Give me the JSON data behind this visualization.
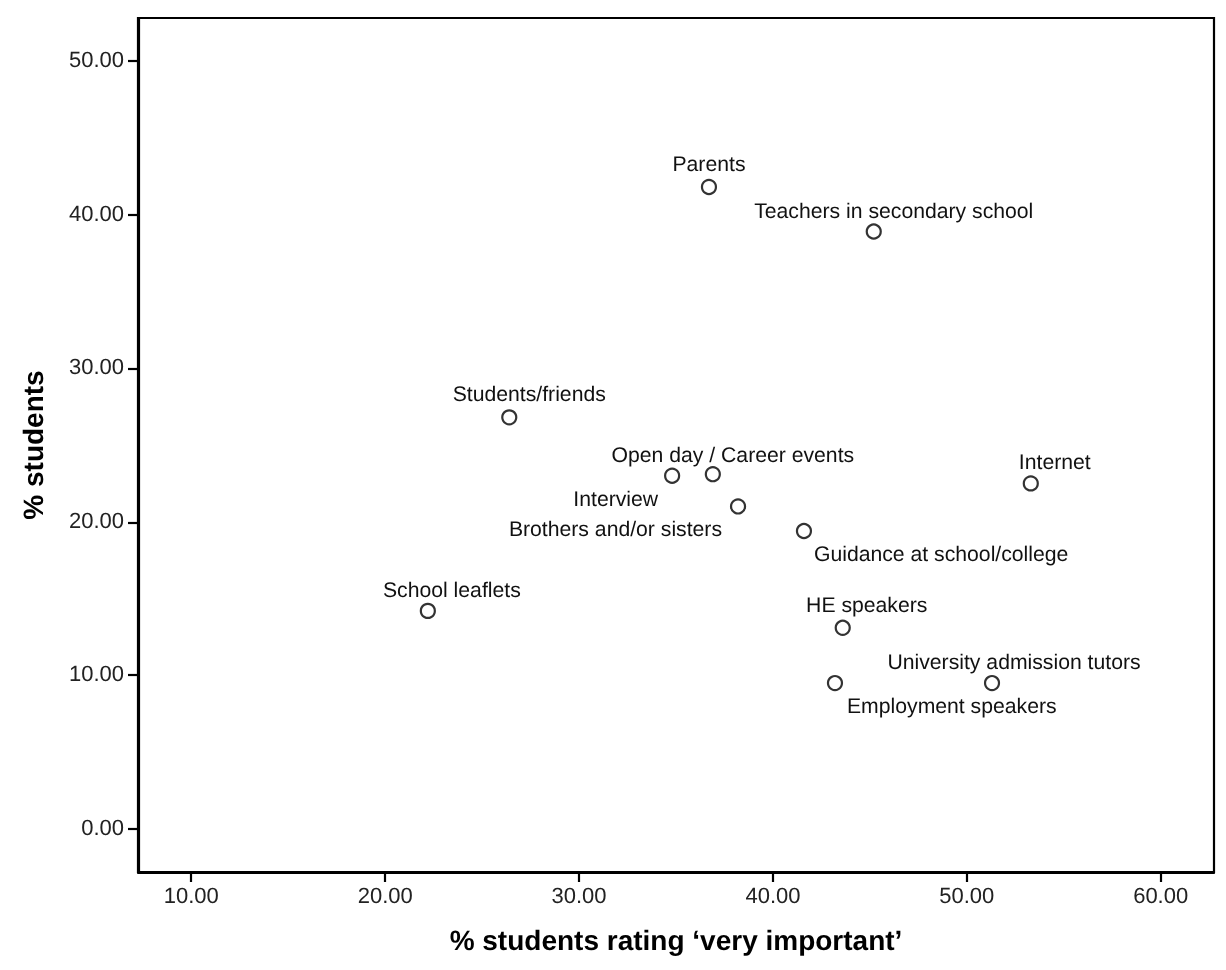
{
  "chart_data": {
    "type": "scatter",
    "xlabel": "% students rating ‘very important’",
    "ylabel": "% students",
    "x": [
      36.7,
      45.2,
      26.4,
      36.9,
      34.8,
      38.2,
      41.6,
      53.3,
      22.2,
      43.6,
      51.3,
      43.2
    ],
    "series": [
      {
        "color": "#000000",
        "values": [
          41.8,
          38.9,
          26.8,
          23.1,
          23.0,
          21.0,
          19.4,
          22.5,
          14.2,
          13.1,
          9.5,
          9.5
        ]
      }
    ],
    "marker": "circle",
    "grid": false,
    "xlim": [
      7.25,
      62.75
    ],
    "xticks": [
      {
        "value": 10,
        "label": "10.00"
      },
      {
        "value": 20,
        "label": "20.00"
      },
      {
        "value": 30,
        "label": "30.00"
      },
      {
        "value": 40,
        "label": "40.00"
      },
      {
        "value": 50,
        "label": "50.00"
      },
      {
        "value": 60,
        "label": "60.00"
      }
    ],
    "ylim": [
      -2.8,
      52.8
    ],
    "yticks": [
      {
        "value": 0,
        "label": "0.00"
      },
      {
        "value": 10,
        "label": "10.00"
      },
      {
        "value": 20,
        "label": "20.00"
      },
      {
        "value": 30,
        "label": "30.00"
      },
      {
        "value": 40,
        "label": "40.00"
      },
      {
        "value": 50,
        "label": "50.00"
      }
    ],
    "annotations": [
      {
        "text": "Parents",
        "x": 36.7,
        "y": 41.8
      },
      {
        "text": "Teachers in secondary school",
        "x": 45.2,
        "y": 38.9
      },
      {
        "text": "Students/friends",
        "x": 26.4,
        "y": 26.8
      },
      {
        "text": "Open day / Career events",
        "x": 36.9,
        "y": 23.1
      },
      {
        "text": "Interview",
        "x": 34.8,
        "y": 23.0
      },
      {
        "text": "Brothers and/or sisters",
        "x": 38.2,
        "y": 21.0
      },
      {
        "text": "Guidance at school/college",
        "x": 41.6,
        "y": 19.4
      },
      {
        "text": "Internet",
        "x": 53.3,
        "y": 22.5
      },
      {
        "text": "School leaflets",
        "x": 22.2,
        "y": 14.2
      },
      {
        "text": "HE speakers",
        "x": 43.6,
        "y": 13.1
      },
      {
        "text": "University admission tutors",
        "x": 51.3,
        "y": 9.5
      },
      {
        "text": "Employment speakers",
        "x": 43.2,
        "y": 9.5
      }
    ]
  }
}
